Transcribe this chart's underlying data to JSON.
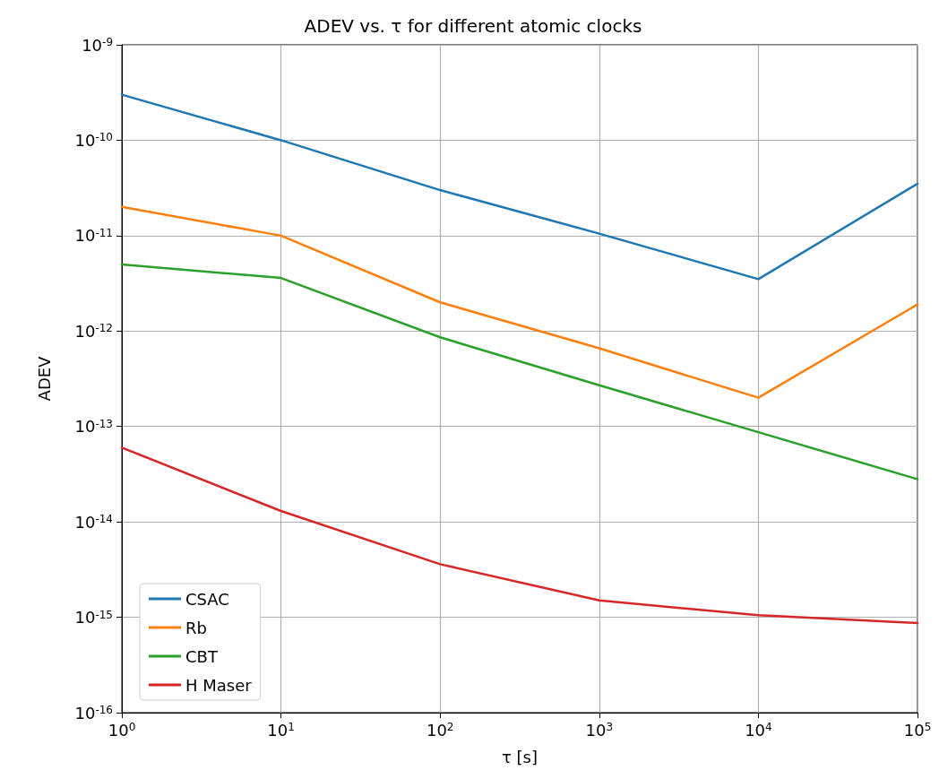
{
  "chart_data": {
    "type": "line",
    "title": "ADEV vs. τ for different atomic clocks",
    "xlabel": "τ [s]",
    "ylabel": "ADEV",
    "log": "xy",
    "grid": true,
    "legend": "bottom left",
    "marker": "none",
    "line_style": "solid",
    "x": [
      1,
      10,
      100,
      1000,
      10000,
      100000
    ],
    "xlim": [
      1,
      100000
    ],
    "ylim": [
      1e-16,
      1e-09
    ],
    "xticks": [
      {
        "value": 1,
        "label": "10$^{0}$"
      },
      {
        "value": 10,
        "label": "10$^{1}$"
      },
      {
        "value": 100,
        "label": "10$^{2}$"
      },
      {
        "value": 1000,
        "label": "10$^{3}$"
      },
      {
        "value": 10000,
        "label": "10$^{4}$"
      },
      {
        "value": 100000,
        "label": "10$^{5}$"
      }
    ],
    "yticks": [
      {
        "value": 1e-16,
        "label": "10$^{-16}$"
      },
      {
        "value": 1e-15,
        "label": "10$^{-15}$"
      },
      {
        "value": 1e-14,
        "label": "10$^{-14}$"
      },
      {
        "value": 1e-13,
        "label": "10$^{-13}$"
      },
      {
        "value": 1e-12,
        "label": "10$^{-12}$"
      },
      {
        "value": 1e-11,
        "label": "10$^{-11}$"
      },
      {
        "value": 1e-10,
        "label": "10$^{-10}$"
      },
      {
        "value": 1e-09,
        "label": "10$^{-9}$"
      }
    ],
    "series": [
      {
        "name": "CSAC",
        "color": "#1f77b4",
        "values": [
          3e-10,
          1e-10,
          3e-11,
          1.05e-11,
          3.5e-12,
          3.5e-11
        ]
      },
      {
        "name": "Rb",
        "color": "#ff7f0e",
        "values": [
          2e-11,
          1e-11,
          2e-12,
          6.6e-13,
          2e-13,
          1.9e-12
        ]
      },
      {
        "name": "CBT",
        "color": "#2ca02c",
        "values": [
          5e-12,
          3.6e-12,
          8.6e-13,
          2.7e-13,
          8.7e-14,
          2.8e-14
        ]
      },
      {
        "name": "H Maser",
        "color": "#d62728",
        "values": [
          6e-14,
          1.3e-14,
          3.6e-15,
          1.5e-15,
          1.05e-15,
          8.7e-16
        ]
      }
    ]
  }
}
